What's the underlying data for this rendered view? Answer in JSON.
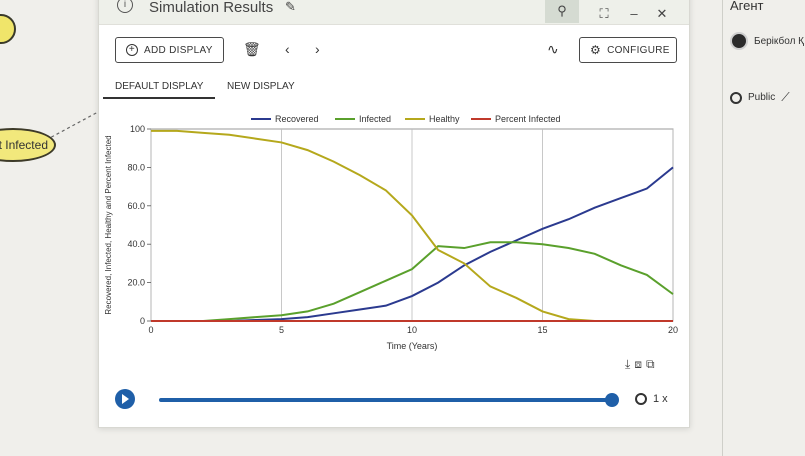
{
  "canvas": {
    "node_label": "t Infected"
  },
  "side_panel": {
    "title": "Агент",
    "user_name": "Берікбол Қ",
    "visibility": "Public"
  },
  "window": {
    "title": "Simulation Results",
    "toolbar": {
      "add_display": "ADD DISPLAY",
      "configure": "CONFIGURE"
    },
    "tabs": [
      {
        "label": "DEFAULT DISPLAY",
        "active": true
      },
      {
        "label": "NEW DISPLAY",
        "active": false
      }
    ],
    "playback": {
      "speed": "1 x",
      "progress": 1.0
    }
  },
  "chart_data": {
    "type": "line",
    "xlabel": "Time (Years)",
    "ylabel": "Recovered, Infected, Healthy  and Percent Infected",
    "xlim": [
      0,
      20
    ],
    "ylim": [
      0,
      100
    ],
    "xticks": [
      0,
      5,
      10,
      15,
      20
    ],
    "yticks": [
      "0",
      "20.0",
      "40.0",
      "60.0",
      "80.0",
      "100"
    ],
    "grid": "vertical",
    "legend_position": "top",
    "x": [
      0,
      1,
      2,
      3,
      4,
      5,
      6,
      7,
      8,
      9,
      10,
      11,
      12,
      13,
      14,
      15,
      16,
      17,
      18,
      19,
      20
    ],
    "series": [
      {
        "name": "Recovered",
        "color": "#2b3a8f",
        "values": [
          0,
          0,
          0,
          0,
          0.5,
          1,
          2,
          4,
          6,
          8,
          13,
          20,
          29,
          36,
          42,
          48,
          53,
          59,
          64,
          69,
          80
        ]
      },
      {
        "name": "Infected",
        "color": "#5aa02c",
        "values": [
          0,
          0,
          0,
          1,
          2,
          3,
          5,
          9,
          15,
          21,
          27,
          39,
          38,
          41,
          41,
          40,
          38,
          35,
          29,
          24,
          14
        ]
      },
      {
        "name": "Healthy",
        "color": "#b5a81c",
        "values": [
          99,
          99,
          98,
          97,
          95,
          93,
          89,
          83,
          76,
          68,
          55,
          37,
          30,
          18,
          12,
          5,
          1,
          0,
          0,
          0,
          0
        ]
      },
      {
        "name": "Percent Infected",
        "color": "#c0392b",
        "values": [
          0,
          0,
          0,
          0,
          0,
          0,
          0,
          0,
          0,
          0,
          0,
          0,
          0,
          0,
          0,
          0,
          0,
          0,
          0,
          0,
          0
        ]
      }
    ]
  }
}
